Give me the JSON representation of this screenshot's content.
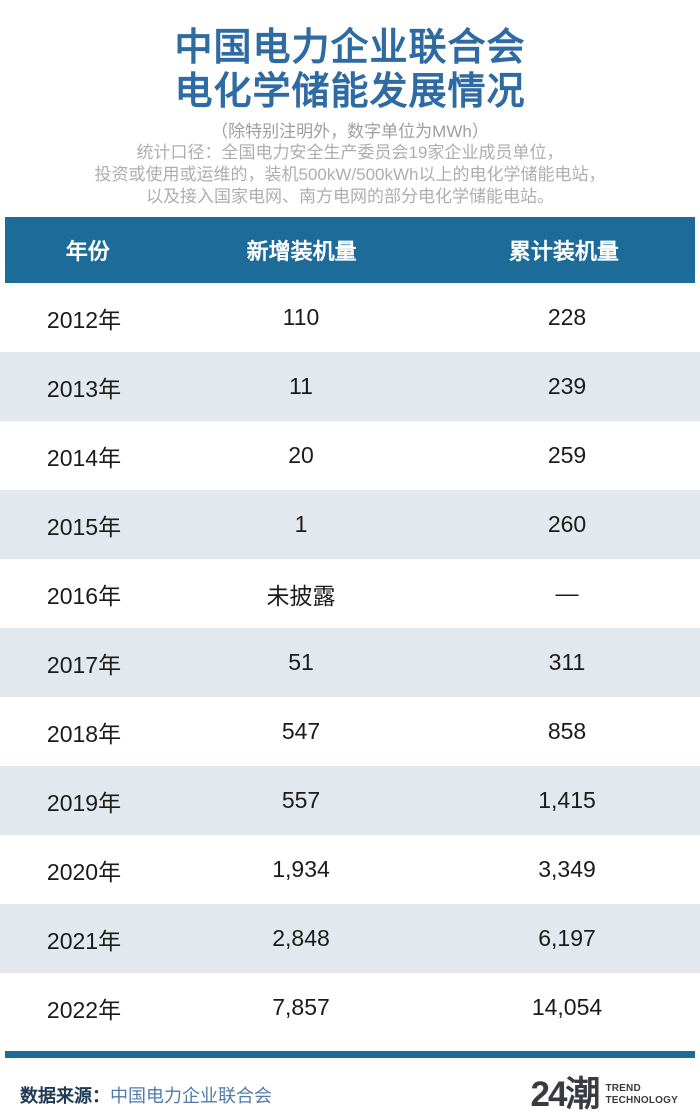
{
  "header": {
    "title_line1": "中国电力企业联合会",
    "title_line2": "电化学储能发展情况",
    "unit_note": "（除特别注明外，数字单位为MWh）",
    "caption_line1": "统计口径：全国电力安全生产委员会19家企业成员单位，",
    "caption_line2": "投资或使用或运维的，装机500kW/500kWh以上的电化学储能电站，",
    "caption_line3": "以及接入国家电网、南方电网的部分电化学储能电站。"
  },
  "table": {
    "columns": {
      "year": "年份",
      "new_capacity": "新增装机量",
      "cumulative": "累计装机量"
    },
    "rows": [
      {
        "year": "2012年",
        "new_capacity": "110",
        "cumulative": "228"
      },
      {
        "year": "2013年",
        "new_capacity": "11",
        "cumulative": "239"
      },
      {
        "year": "2014年",
        "new_capacity": "20",
        "cumulative": "259"
      },
      {
        "year": "2015年",
        "new_capacity": "1",
        "cumulative": "260"
      },
      {
        "year": "2016年",
        "new_capacity": "未披露",
        "cumulative": "—"
      },
      {
        "year": "2017年",
        "new_capacity": "51",
        "cumulative": "311"
      },
      {
        "year": "2018年",
        "new_capacity": "547",
        "cumulative": "858"
      },
      {
        "year": "2019年",
        "new_capacity": "557",
        "cumulative": "1,415"
      },
      {
        "year": "2020年",
        "new_capacity": "1,934",
        "cumulative": "3,349"
      },
      {
        "year": "2021年",
        "new_capacity": "2,848",
        "cumulative": "6,197"
      },
      {
        "year": "2022年",
        "new_capacity": "7,857",
        "cumulative": "14,054"
      }
    ]
  },
  "footer": {
    "source_label": "数据来源：",
    "source_value": "中国电力企业联合会",
    "logo_text": "24潮",
    "logo_sub_line1": "TREND",
    "logo_sub_line2": "TECHNOLOGY"
  },
  "colors": {
    "accent_blue": "#1d6b99",
    "title_blue": "#2e6ba3",
    "row_alt_blue": "#e2e8ee",
    "source_label_navy": "#1e3a55",
    "source_value_blue": "#4f7ca8"
  },
  "chart_data": {
    "type": "table",
    "title": "中国电力企业联合会电化学储能发展情况",
    "unit": "MWh",
    "columns": [
      "年份",
      "新增装机量",
      "累计装机量"
    ],
    "categories": [
      "2012",
      "2013",
      "2014",
      "2015",
      "2016",
      "2017",
      "2018",
      "2019",
      "2020",
      "2021",
      "2022"
    ],
    "series": [
      {
        "name": "新增装机量",
        "values": [
          110,
          11,
          20,
          1,
          null,
          51,
          547,
          557,
          1934,
          2848,
          7857
        ]
      },
      {
        "name": "累计装机量",
        "values": [
          228,
          239,
          259,
          260,
          null,
          311,
          858,
          1415,
          3349,
          6197,
          14054
        ]
      }
    ],
    "notes": "2016年新增装机量未披露，累计装机量为—"
  }
}
